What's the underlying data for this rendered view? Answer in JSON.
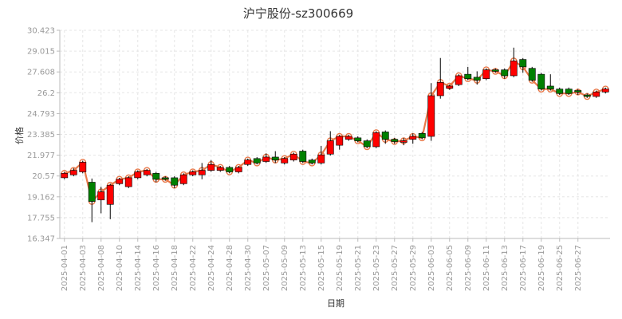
{
  "chart_data": {
    "type": "candlestick",
    "title": "沪宁股份-sz300669",
    "xlabel": "日期",
    "ylabel": "价格",
    "ylim": [
      16.347,
      30.423
    ],
    "y_ticks": [
      "16.347",
      "17.755",
      "19.162",
      "20.57",
      "21.977",
      "23.385",
      "24.793",
      "26.2",
      "27.608",
      "29.015",
      "30.423"
    ],
    "grid": true,
    "colors": {
      "up": "#ff0000",
      "down": "#008000",
      "line": "#e9794a",
      "wick": "#000000"
    },
    "x_labels": [
      "2025-04-01",
      "2025-04-03",
      "2025-04-08",
      "2025-04-10",
      "2025-04-14",
      "2025-04-16",
      "2025-04-18",
      "2025-04-22",
      "2025-04-24",
      "2025-04-28",
      "2025-04-30",
      "2025-05-07",
      "2025-05-09",
      "2025-05-13",
      "2025-05-15",
      "2025-05-19",
      "2025-05-21",
      "2025-05-23",
      "2025-05-27",
      "2025-05-29",
      "2025-06-03",
      "2025-06-05",
      "2025-06-09",
      "2025-06-11",
      "2025-06-13",
      "2025-06-17",
      "2025-06-19",
      "2025-06-25",
      "2025-06-27"
    ],
    "x_label_indices": [
      0,
      2,
      4,
      6,
      8,
      10,
      12,
      14,
      16,
      18,
      20,
      22,
      24,
      26,
      28,
      30,
      32,
      34,
      36,
      38,
      40,
      42,
      44,
      46,
      48,
      50,
      52,
      54,
      56
    ],
    "candles": [
      {
        "o": 20.45,
        "c": 20.75,
        "h": 20.85,
        "l": 20.35
      },
      {
        "o": 20.65,
        "c": 20.95,
        "h": 21.1,
        "l": 20.55
      },
      {
        "o": 20.85,
        "c": 21.5,
        "h": 21.6,
        "l": 20.75
      },
      {
        "o": 20.15,
        "c": 18.85,
        "h": 20.4,
        "l": 17.45
      },
      {
        "o": 18.95,
        "c": 19.5,
        "h": 19.85,
        "l": 18.05
      },
      {
        "o": 18.65,
        "c": 19.95,
        "h": 20.05,
        "l": 17.65
      },
      {
        "o": 20.05,
        "c": 20.35,
        "h": 20.45,
        "l": 19.95
      },
      {
        "o": 19.85,
        "c": 20.45,
        "h": 20.55,
        "l": 19.75
      },
      {
        "o": 20.45,
        "c": 20.85,
        "h": 20.95,
        "l": 20.35
      },
      {
        "o": 20.65,
        "c": 20.95,
        "h": 21.05,
        "l": 20.55
      },
      {
        "o": 20.75,
        "c": 20.35,
        "h": 20.85,
        "l": 20.15
      },
      {
        "o": 20.45,
        "c": 20.35,
        "h": 20.55,
        "l": 20.25
      },
      {
        "o": 20.45,
        "c": 19.95,
        "h": 20.55,
        "l": 19.75
      },
      {
        "o": 20.05,
        "c": 20.65,
        "h": 20.75,
        "l": 19.95
      },
      {
        "o": 20.65,
        "c": 20.85,
        "h": 20.95,
        "l": 20.55
      },
      {
        "o": 20.65,
        "c": 20.95,
        "h": 21.45,
        "l": 20.35
      },
      {
        "o": 20.95,
        "c": 21.35,
        "h": 21.65,
        "l": 20.85
      },
      {
        "o": 20.95,
        "c": 21.15,
        "h": 21.25,
        "l": 20.85
      },
      {
        "o": 21.15,
        "c": 20.85,
        "h": 21.25,
        "l": 20.75
      },
      {
        "o": 20.85,
        "c": 21.15,
        "h": 21.25,
        "l": 20.75
      },
      {
        "o": 21.35,
        "c": 21.65,
        "h": 21.75,
        "l": 21.25
      },
      {
        "o": 21.75,
        "c": 21.45,
        "h": 21.85,
        "l": 21.35
      },
      {
        "o": 21.55,
        "c": 21.85,
        "h": 22.1,
        "l": 21.45
      },
      {
        "o": 21.85,
        "c": 21.65,
        "h": 22.25,
        "l": 21.45
      },
      {
        "o": 21.45,
        "c": 21.75,
        "h": 21.85,
        "l": 21.35
      },
      {
        "o": 21.65,
        "c": 22.05,
        "h": 22.15,
        "l": 21.55
      },
      {
        "o": 22.25,
        "c": 21.55,
        "h": 22.35,
        "l": 21.45
      },
      {
        "o": 21.65,
        "c": 21.45,
        "h": 21.75,
        "l": 21.35
      },
      {
        "o": 21.45,
        "c": 22.0,
        "h": 22.6,
        "l": 21.35
      },
      {
        "o": 22.05,
        "c": 22.95,
        "h": 23.6,
        "l": 21.95
      },
      {
        "o": 22.65,
        "c": 23.25,
        "h": 23.35,
        "l": 22.35
      },
      {
        "o": 23.05,
        "c": 23.25,
        "h": 23.35,
        "l": 22.95
      },
      {
        "o": 23.15,
        "c": 22.95,
        "h": 23.25,
        "l": 22.85
      },
      {
        "o": 22.95,
        "c": 22.55,
        "h": 23.05,
        "l": 22.45
      },
      {
        "o": 22.55,
        "c": 23.5,
        "h": 23.6,
        "l": 22.45
      },
      {
        "o": 23.55,
        "c": 23.05,
        "h": 23.65,
        "l": 22.75
      },
      {
        "o": 23.05,
        "c": 22.9,
        "h": 23.15,
        "l": 22.75
      },
      {
        "o": 22.85,
        "c": 22.95,
        "h": 23.15,
        "l": 22.65
      },
      {
        "o": 23.05,
        "c": 23.25,
        "h": 23.45,
        "l": 22.75
      },
      {
        "o": 23.45,
        "c": 23.15,
        "h": 23.55,
        "l": 23.05
      },
      {
        "o": 23.25,
        "c": 26.0,
        "h": 26.85,
        "l": 22.95
      },
      {
        "o": 26.0,
        "c": 26.9,
        "h": 28.55,
        "l": 25.8
      },
      {
        "o": 26.5,
        "c": 26.65,
        "h": 26.75,
        "l": 26.4
      },
      {
        "o": 26.75,
        "c": 27.35,
        "h": 27.45,
        "l": 26.65
      },
      {
        "o": 27.45,
        "c": 27.15,
        "h": 27.95,
        "l": 27.05
      },
      {
        "o": 27.25,
        "c": 27.05,
        "h": 27.65,
        "l": 26.75
      },
      {
        "o": 27.15,
        "c": 27.75,
        "h": 27.85,
        "l": 27.05
      },
      {
        "o": 27.75,
        "c": 27.65,
        "h": 27.85,
        "l": 27.55
      },
      {
        "o": 27.75,
        "c": 27.35,
        "h": 27.85,
        "l": 27.15
      },
      {
        "o": 27.35,
        "c": 28.35,
        "h": 29.25,
        "l": 27.25
      },
      {
        "o": 28.45,
        "c": 27.95,
        "h": 28.55,
        "l": 27.55
      },
      {
        "o": 27.85,
        "c": 27.05,
        "h": 27.95,
        "l": 26.95
      },
      {
        "o": 27.45,
        "c": 26.45,
        "h": 27.55,
        "l": 26.35
      },
      {
        "o": 26.65,
        "c": 26.45,
        "h": 27.45,
        "l": 26.35
      },
      {
        "o": 26.45,
        "c": 26.15,
        "h": 26.55,
        "l": 26.05
      },
      {
        "o": 26.45,
        "c": 26.15,
        "h": 26.55,
        "l": 26.05
      },
      {
        "o": 26.35,
        "c": 26.25,
        "h": 26.45,
        "l": 26.05
      },
      {
        "o": 26.05,
        "c": 25.95,
        "h": 26.15,
        "l": 25.85
      },
      {
        "o": 25.95,
        "c": 26.25,
        "h": 26.35,
        "l": 25.85
      },
      {
        "o": 26.25,
        "c": 26.45,
        "h": 26.55,
        "l": 26.15
      }
    ]
  }
}
